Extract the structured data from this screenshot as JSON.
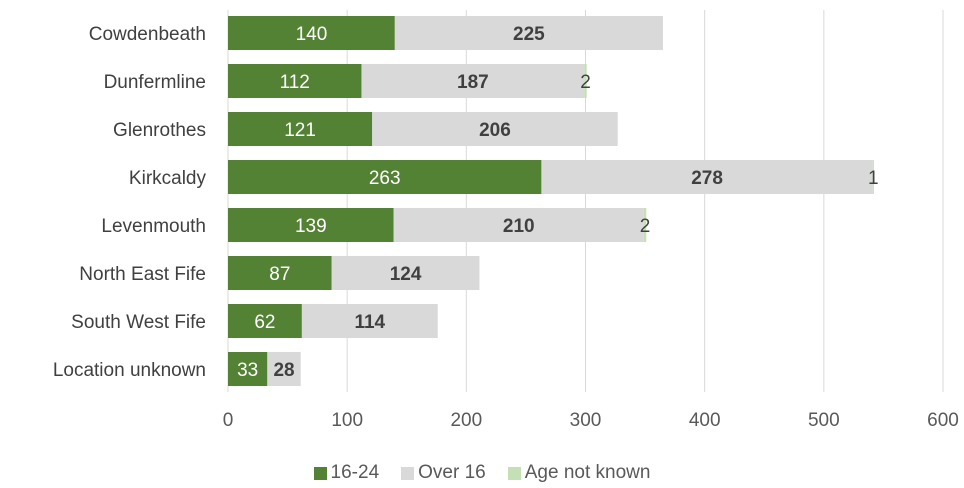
{
  "chart_data": {
    "type": "bar",
    "orientation": "horizontal",
    "stacked": true,
    "categories": [
      "Cowdenbeath",
      "Dunfermline",
      "Glenrothes",
      "Kirkcaldy",
      "Levenmouth",
      "North East Fife",
      "South West Fife",
      "Location unknown"
    ],
    "series": [
      {
        "name": "16-24",
        "color": "#548235",
        "label_color": "#ffffff",
        "bold": false,
        "values": [
          140,
          112,
          121,
          263,
          139,
          87,
          62,
          33
        ]
      },
      {
        "name": "Over 16",
        "color": "#d9d9d9",
        "label_color": "#404040",
        "bold": true,
        "values": [
          225,
          187,
          206,
          278,
          210,
          124,
          114,
          28
        ]
      },
      {
        "name": "Age not known",
        "color": "#c5e0b4",
        "label_color": "#404040",
        "bold": false,
        "values": [
          null,
          2,
          null,
          1,
          2,
          null,
          null,
          null
        ]
      }
    ],
    "x_ticks": [
      0,
      100,
      200,
      300,
      400,
      500,
      600
    ],
    "xlim": [
      0,
      600
    ],
    "grid": "vertical",
    "legend_position": "bottom"
  }
}
